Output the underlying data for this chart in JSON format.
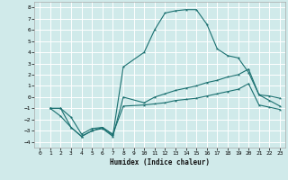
{
  "xlabel": "Humidex (Indice chaleur)",
  "background_color": "#d0eaea",
  "grid_color": "#ffffff",
  "line_color": "#1a7070",
  "xlim": [
    -0.5,
    23.5
  ],
  "ylim": [
    -4.5,
    8.5
  ],
  "xticks": [
    0,
    1,
    2,
    3,
    4,
    5,
    6,
    7,
    8,
    9,
    10,
    11,
    12,
    13,
    14,
    15,
    16,
    17,
    18,
    19,
    20,
    21,
    22,
    23
  ],
  "yticks": [
    -4,
    -3,
    -2,
    -1,
    0,
    1,
    2,
    3,
    4,
    5,
    6,
    7,
    8
  ],
  "line1_x": [
    1,
    2,
    3,
    4,
    5,
    6,
    7,
    8,
    10,
    11,
    12,
    13,
    14,
    15,
    16,
    17,
    18,
    19,
    20,
    21,
    22,
    23
  ],
  "line1_y": [
    -1,
    -1,
    -1.8,
    -3.3,
    -2.8,
    -2.7,
    -3.3,
    -0.8,
    -0.7,
    -0.6,
    -0.5,
    -0.3,
    -0.2,
    -0.1,
    0.1,
    0.3,
    0.5,
    0.7,
    1.2,
    -0.7,
    -0.9,
    -1.1
  ],
  "line2_x": [
    1,
    2,
    3,
    4,
    5,
    6,
    7,
    8,
    10,
    11,
    12,
    13,
    14,
    15,
    16,
    17,
    18,
    19,
    20,
    21,
    22,
    23
  ],
  "line2_y": [
    -1,
    -1.7,
    -2.7,
    -3.5,
    -3.0,
    -2.8,
    -3.5,
    0.0,
    -0.5,
    0.0,
    0.3,
    0.6,
    0.8,
    1.0,
    1.3,
    1.5,
    1.8,
    2.0,
    2.5,
    0.2,
    0.1,
    -0.1
  ],
  "line3_x": [
    1,
    2,
    3,
    4,
    5,
    6,
    7,
    8,
    10,
    11,
    12,
    13,
    14,
    15,
    16,
    17,
    18,
    19,
    20,
    21,
    22,
    23
  ],
  "line3_y": [
    -1,
    -1,
    -2.7,
    -3.5,
    -3.0,
    -2.7,
    -3.4,
    2.7,
    4.0,
    6.0,
    7.5,
    7.7,
    7.8,
    7.8,
    6.5,
    4.3,
    3.7,
    3.5,
    2.2,
    0.2,
    -0.3,
    -0.8
  ]
}
